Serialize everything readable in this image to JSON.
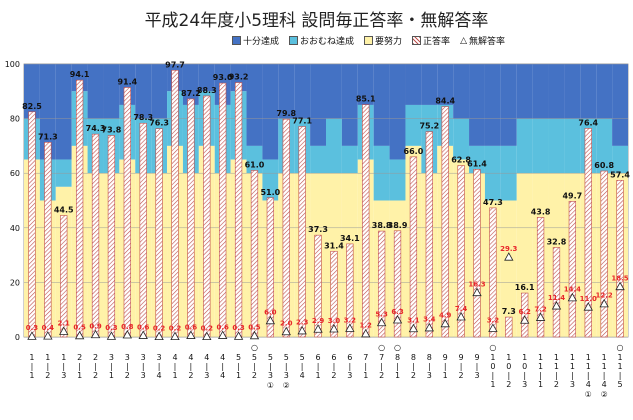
{
  "chart_data": {
    "type": "bar",
    "title": "平成24年度小5理科 設問毎正答率・無解答率",
    "ylim": [
      0,
      100
    ],
    "yticks": [
      0,
      20,
      40,
      60,
      80,
      100
    ],
    "legend": [
      {
        "label": "十分達成",
        "color": "#4472C4"
      },
      {
        "label": "おおむね達成",
        "color": "#5BC0DE"
      },
      {
        "label": "要努力",
        "color": "#FFF2A8"
      },
      {
        "label": "正答率",
        "color": "#C0504D"
      },
      {
        "label": "無解答率",
        "color": "#ffffff"
      }
    ],
    "series": [
      {
        "name": "正答率",
        "values": [
          82.5,
          71.3,
          44.5,
          94.1,
          74.3,
          73.8,
          91.4,
          78.3,
          76.3,
          97.7,
          87.2,
          88.3,
          93.0,
          93.2,
          61.0,
          51.0,
          79.8,
          77.1,
          37.3,
          31.4,
          34.1,
          85.1,
          38.8,
          38.9,
          66.0,
          75.2,
          84.4,
          62.8,
          61.4,
          47.3,
          7.3,
          16.1,
          43.8,
          32.8,
          49.7,
          76.4,
          60.8,
          57.4
        ]
      },
      {
        "name": "無解答率",
        "values": [
          0.3,
          0.4,
          2.1,
          0.5,
          0.9,
          0.3,
          0.8,
          0.6,
          0.2,
          0.2,
          0.6,
          0.2,
          0.6,
          0.3,
          0.5,
          6.0,
          2.0,
          2.3,
          2.9,
          3.0,
          3.2,
          1.2,
          5.3,
          6.3,
          3.1,
          3.4,
          4.9,
          7.4,
          16.3,
          3.2,
          29.3,
          6.2,
          7.2,
          11.4,
          14.4,
          11.0,
          12.2,
          18.5
        ]
      },
      {
        "name": "十分達成",
        "values": [
          100,
          100,
          100,
          100,
          100,
          100,
          100,
          100,
          100,
          100,
          100,
          100,
          100,
          100,
          100,
          100,
          100,
          100,
          100,
          100,
          100,
          100,
          100,
          100,
          100,
          100,
          100,
          100,
          100,
          100,
          100,
          100,
          100,
          100,
          100,
          100,
          100,
          100
        ]
      },
      {
        "name": "おおむね達成",
        "values": [
          80,
          65,
          65,
          90,
          80,
          80,
          85,
          80,
          80,
          90,
          85,
          90,
          85,
          90,
          70,
          65,
          80,
          80,
          70,
          80,
          70,
          85,
          70,
          65,
          85,
          85,
          85,
          80,
          70,
          70,
          70,
          80,
          80,
          80,
          80,
          80,
          80,
          70
        ]
      },
      {
        "name": "要努力",
        "values": [
          65,
          50,
          55,
          70,
          60,
          60,
          65,
          60,
          60,
          70,
          60,
          70,
          60,
          65,
          60,
          50,
          60,
          60,
          60,
          60,
          60,
          65,
          50,
          50,
          70,
          60,
          70,
          65,
          60,
          50,
          50,
          60,
          60,
          60,
          60,
          60,
          60,
          60
        ]
      }
    ],
    "categories": [
      "1-1",
      "1-2",
      "1-3",
      "2-1",
      "2-2",
      "3-1",
      "3-2",
      "3-3",
      "3-4",
      "4-1",
      "4-2",
      "4-3",
      "4-4",
      "5-1",
      "5-2",
      "5-3①",
      "5-3②",
      "5-4",
      "6-1",
      "6-2",
      "6-3",
      "7-1",
      "7-2",
      "8-1",
      "8-2",
      "8-3",
      "9-1",
      "9-2",
      "9-3",
      "10-1",
      "10-2",
      "10-3",
      "11-1",
      "11-2",
      "11-3",
      "11-4①",
      "11-4②",
      "11-5"
    ],
    "star_marks": [
      14,
      22,
      23,
      29,
      37
    ],
    "grid": true
  },
  "title": "平成24年度小5理科 設問毎正答率・無解答率"
}
